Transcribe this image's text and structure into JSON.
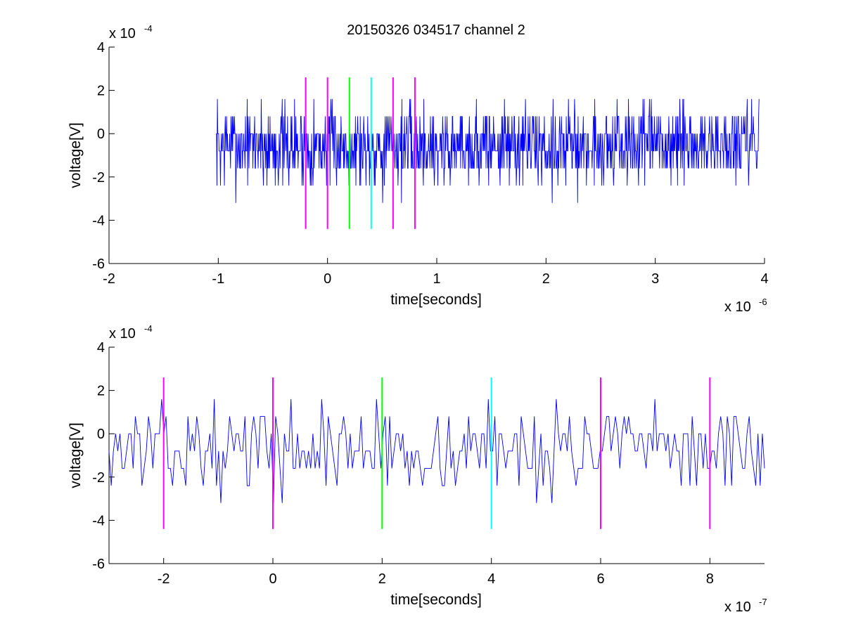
{
  "figure": {
    "title": "20150326 034517 channel 2"
  },
  "chart_data": [
    {
      "type": "line",
      "title": "20150326 034517 channel 2",
      "xlabel": "time[seconds]",
      "ylabel": "voltage[V]",
      "x_multiplier": "x 10",
      "x_exponent": "-6",
      "y_multiplier": "x 10",
      "y_exponent": "-4",
      "xlim": [
        -2,
        4
      ],
      "ylim": [
        -6,
        4
      ],
      "xticks": [
        -2,
        -1,
        0,
        1,
        2,
        3,
        4
      ],
      "xtick_labels": [
        "-2",
        "-1",
        "0",
        "1",
        "2",
        "3",
        "4"
      ],
      "yticks": [
        -6,
        -4,
        -2,
        0,
        2,
        4
      ],
      "ytick_labels": [
        "-6",
        "-4",
        "-2",
        "0",
        "2",
        "4"
      ],
      "grid": false,
      "series": [
        {
          "color": "#0000ff",
          "x_start": -1.02,
          "x_end": 3.95,
          "n_points": 1240,
          "baseline": -0.55,
          "noise_step": 0.8,
          "min": -4,
          "max": 2.4,
          "seed": 7
        }
      ],
      "markers": [
        {
          "x": -0.2,
          "y_from": -4.4,
          "y_to": 2.6,
          "color": "#ff00ff"
        },
        {
          "x": 0.0,
          "y_from": -4.4,
          "y_to": 2.6,
          "color": "#ff00ff"
        },
        {
          "x": 0.2,
          "y_from": -4.4,
          "y_to": 2.6,
          "color": "#00ff00"
        },
        {
          "x": 0.4,
          "y_from": -4.4,
          "y_to": 2.6,
          "color": "#00ffff"
        },
        {
          "x": 0.6,
          "y_from": -4.4,
          "y_to": 2.6,
          "color": "#ff00ff"
        },
        {
          "x": 0.8,
          "y_from": -4.4,
          "y_to": 2.6,
          "color": "#ff00ff"
        }
      ]
    },
    {
      "type": "line",
      "title": "",
      "xlabel": "time[seconds]",
      "ylabel": "voltage[V]",
      "x_multiplier": "x 10",
      "x_exponent": "-7",
      "y_multiplier": "x 10",
      "y_exponent": "-4",
      "xlim": [
        -3,
        9
      ],
      "ylim": [
        -6,
        4
      ],
      "xticks": [
        -2,
        0,
        2,
        4,
        6,
        8
      ],
      "xtick_labels": [
        "-2",
        "0",
        "2",
        "4",
        "6",
        "8"
      ],
      "yticks": [
        -6,
        -4,
        -2,
        0,
        2,
        4
      ],
      "ytick_labels": [
        "-6",
        "-4",
        "-2",
        "0",
        "2",
        "4"
      ],
      "grid": false,
      "series": [
        {
          "color": "#0000ff",
          "x_start": -3,
          "x_end": 9,
          "n_points": 300,
          "baseline": -0.7,
          "noise_step": 0.8,
          "min": -4,
          "max": 1.6,
          "seed": 13
        }
      ],
      "markers": [
        {
          "x": -2,
          "y_from": -4.4,
          "y_to": 2.6,
          "color": "#ff00ff"
        },
        {
          "x": 0,
          "y_from": -4.4,
          "y_to": 2.6,
          "color": "#ff00ff"
        },
        {
          "x": 2,
          "y_from": -4.4,
          "y_to": 2.6,
          "color": "#00ff00"
        },
        {
          "x": 4,
          "y_from": -4.4,
          "y_to": 2.6,
          "color": "#00ffff"
        },
        {
          "x": 6,
          "y_from": -4.4,
          "y_to": 2.6,
          "color": "#ff00ff"
        },
        {
          "x": 8,
          "y_from": -4.4,
          "y_to": 2.6,
          "color": "#ff00ff"
        }
      ]
    }
  ]
}
